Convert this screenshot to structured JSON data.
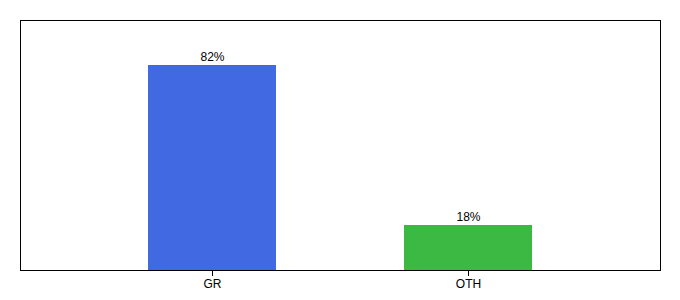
{
  "chart_data": {
    "type": "bar",
    "categories": [
      "GR",
      "OTH"
    ],
    "values": [
      82,
      18
    ],
    "colors": [
      "#4169E1",
      "#3CB943"
    ],
    "value_labels": [
      "82%",
      "18%"
    ],
    "data_labels": true,
    "ylim": [
      0,
      100
    ],
    "tick_labels": "x"
  }
}
